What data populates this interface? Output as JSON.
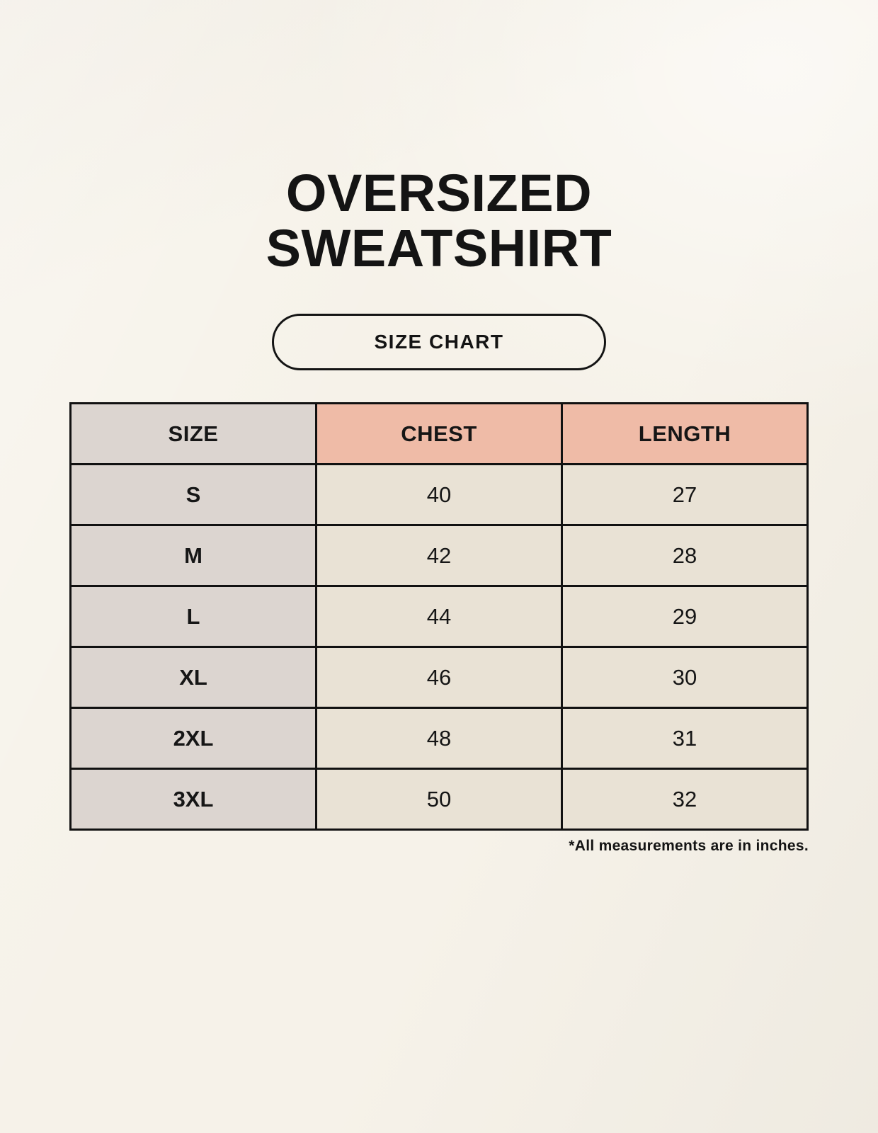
{
  "header": {
    "line1": "OVERSIZED",
    "line2": "SWEATSHIRT"
  },
  "button": {
    "label": "SIZE CHART"
  },
  "chart_data": {
    "type": "table",
    "title": "OVERSIZED SWEATSHIRT",
    "columns": [
      "SIZE",
      "CHEST",
      "LENGTH"
    ],
    "rows": [
      [
        "S",
        "40",
        "27"
      ],
      [
        "M",
        "42",
        "28"
      ],
      [
        "L",
        "44",
        "29"
      ],
      [
        "XL",
        "46",
        "30"
      ],
      [
        "2XL",
        "48",
        "31"
      ],
      [
        "3XL",
        "50",
        "32"
      ]
    ]
  },
  "footnote": "*All measurements are in inches.",
  "colors": {
    "background": "#f6f2e9",
    "size_column_gray": "#dcd5d0",
    "accent_salmon": "#efbba7",
    "cell_cream": "#e9e2d5",
    "border_black": "#111111",
    "text_black": "#141414"
  }
}
